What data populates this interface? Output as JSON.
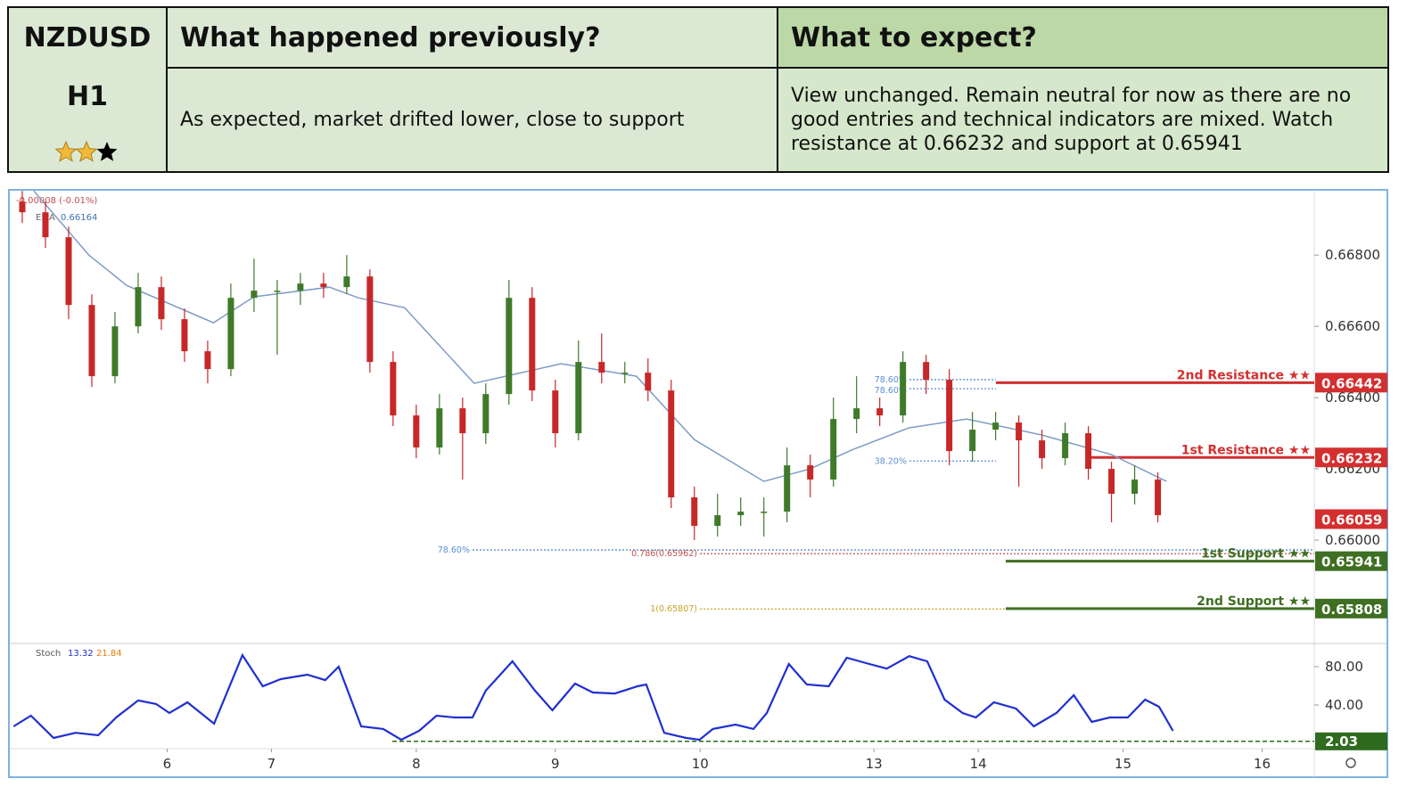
{
  "table": {
    "symbol": "NZDUSD",
    "timeframe": "H1",
    "rating": 2,
    "rating_max": 3,
    "previous_title": "What happened previously?",
    "expect_title": "What to expect?",
    "previous_text": "As expected, market drifted lower, close to support",
    "expect_text": "View unchanged. Remain neutral for now as there are no good entries and technical indicators are mixed. Watch resistance at 0.66232 and support at 0.65941"
  },
  "chart_data": [
    {
      "type": "candlestick",
      "change_text": "-0.00008 (-0.01%)",
      "xlim": [
        0,
        225
      ],
      "ylim": [
        0.6571,
        0.66983
      ],
      "xticks": [
        {
          "value": 27,
          "label": "6"
        },
        {
          "value": 45,
          "label": "7"
        },
        {
          "value": 70,
          "label": "8"
        },
        {
          "value": 94,
          "label": "9"
        },
        {
          "value": 119,
          "label": "10"
        },
        {
          "value": 149,
          "label": "13"
        },
        {
          "value": 167,
          "label": "14"
        },
        {
          "value": 192,
          "label": "15"
        },
        {
          "value": 216,
          "label": "16"
        }
      ],
      "yticks": [
        {
          "value": 0.668,
          "label": "0.66800"
        },
        {
          "value": 0.666,
          "label": "0.66600"
        },
        {
          "value": 0.664,
          "label": "0.66400"
        },
        {
          "value": 0.662,
          "label": "0.66200"
        },
        {
          "value": 0.66,
          "label": "0.66000"
        }
      ],
      "up_color": "#3f7a2a",
      "down_color": "#c62828",
      "x": [
        2,
        6,
        10,
        14,
        18,
        22,
        26,
        30,
        34,
        38,
        42,
        46,
        50,
        54,
        58,
        62,
        66,
        70,
        74,
        78,
        82,
        86,
        90,
        94,
        98,
        102,
        106,
        110,
        114,
        118,
        122,
        126,
        130,
        134,
        138,
        142,
        146,
        150,
        154,
        158,
        162,
        166,
        170,
        174,
        178,
        182,
        186,
        190,
        194,
        198
      ],
      "open": [
        0.6695,
        0.6692,
        0.6685,
        0.6666,
        0.6646,
        0.666,
        0.6671,
        0.6662,
        0.6653,
        0.6648,
        0.6668,
        0.667,
        0.667,
        0.6672,
        0.6671,
        0.6674,
        0.665,
        0.6635,
        0.6626,
        0.6637,
        0.663,
        0.6641,
        0.6668,
        0.6642,
        0.663,
        0.665,
        0.6647,
        0.6647,
        0.6642,
        0.6612,
        0.6604,
        0.6607,
        0.6608,
        0.6608,
        0.6621,
        0.6617,
        0.6634,
        0.6637,
        0.6635,
        0.665,
        0.6645,
        0.6625,
        0.6631,
        0.6633,
        0.6628,
        0.6623,
        0.663,
        0.662,
        0.6613,
        0.6617
      ],
      "high": [
        0.6698,
        0.6695,
        0.6688,
        0.6669,
        0.6664,
        0.6675,
        0.6674,
        0.6665,
        0.6656,
        0.6672,
        0.6679,
        0.6673,
        0.6675,
        0.6675,
        0.668,
        0.6676,
        0.6653,
        0.6638,
        0.6641,
        0.664,
        0.6644,
        0.6673,
        0.6671,
        0.6645,
        0.6656,
        0.6658,
        0.665,
        0.6651,
        0.6645,
        0.6615,
        0.6613,
        0.6612,
        0.6612,
        0.6626,
        0.6624,
        0.664,
        0.6646,
        0.664,
        0.6653,
        0.6652,
        0.6648,
        0.6636,
        0.6636,
        0.6635,
        0.6631,
        0.6633,
        0.6632,
        0.6622,
        0.6621,
        0.6619
      ],
      "low": [
        0.6689,
        0.6682,
        0.6662,
        0.6643,
        0.6644,
        0.6658,
        0.6659,
        0.665,
        0.6644,
        0.6646,
        0.6664,
        0.6652,
        0.6666,
        0.6668,
        0.6669,
        0.6647,
        0.6632,
        0.6623,
        0.6624,
        0.6617,
        0.6627,
        0.6638,
        0.6639,
        0.6626,
        0.6628,
        0.6644,
        0.6644,
        0.6639,
        0.6609,
        0.66,
        0.6601,
        0.6604,
        0.6601,
        0.6605,
        0.6612,
        0.6615,
        0.663,
        0.6632,
        0.6633,
        0.6641,
        0.6621,
        0.6622,
        0.6628,
        0.6615,
        0.662,
        0.6621,
        0.6617,
        0.6605,
        0.661,
        0.6605
      ],
      "close": [
        0.6692,
        0.6685,
        0.6666,
        0.6646,
        0.666,
        0.6671,
        0.6662,
        0.6653,
        0.6648,
        0.6668,
        0.667,
        0.667,
        0.6672,
        0.6671,
        0.6674,
        0.665,
        0.6635,
        0.6626,
        0.6637,
        0.663,
        0.6641,
        0.6668,
        0.6642,
        0.663,
        0.665,
        0.6647,
        0.6647,
        0.6642,
        0.6612,
        0.6604,
        0.6607,
        0.6608,
        0.6608,
        0.6621,
        0.6617,
        0.6634,
        0.6637,
        0.6635,
        0.665,
        0.6645,
        0.6625,
        0.6631,
        0.6633,
        0.6628,
        0.6623,
        0.663,
        0.662,
        0.6613,
        0.6617,
        0.6607
      ],
      "series": [
        {
          "name": "EMA",
          "color": "#7f9cc4",
          "last": 0.66164,
          "x": [
            4,
            13.5,
            20,
            35,
            42,
            55,
            60,
            68,
            80,
            95,
            108,
            118,
            130,
            138,
            145,
            155,
            165,
            178,
            190,
            199.5
          ],
          "values": [
            0.6698,
            0.668,
            0.66715,
            0.6661,
            0.66683,
            0.6671,
            0.6668,
            0.66652,
            0.6644,
            0.66495,
            0.6646,
            0.66282,
            0.66165,
            0.662,
            0.66252,
            0.66315,
            0.6634,
            0.66295,
            0.6624,
            0.66165
          ]
        }
      ],
      "levels": [
        {
          "label": "2nd Resistance ★★",
          "value": 0.66442,
          "color": "#d32f2f"
        },
        {
          "label": "1st Resistance ★★",
          "value": 0.66232,
          "color": "#d32f2f"
        },
        {
          "label": "1st Support ★★",
          "value": 0.65941,
          "color": "#3f6f22"
        },
        {
          "label": "2nd Support ★★",
          "value": 0.65808,
          "color": "#3f6f22"
        }
      ],
      "last_price": {
        "value": 0.66059,
        "color": "#d32f2f"
      },
      "fibs": [
        {
          "label": "78.60%",
          "value": 0.664505,
          "color": "#5b8fd6"
        },
        {
          "label": "78.60%",
          "value": 0.66425,
          "color": "#5b8fd6"
        },
        {
          "label": "38.20%",
          "value": 0.66222,
          "color": "#5b8fd6"
        },
        {
          "label": "78.60%",
          "value": 0.659725,
          "color": "#5b8fd6"
        },
        {
          "label": "0.786(0.65962)",
          "value": 0.65962,
          "color": "#c0504d"
        },
        {
          "label": "1(0.65807)",
          "value": 0.65807,
          "color": "#c9a227"
        }
      ]
    },
    {
      "type": "line",
      "name": "Stoch",
      "k": 13.32,
      "d": 21.84,
      "xlim": [
        0,
        225
      ],
      "ylim": [
        -5.6,
        104.2
      ],
      "yticks": [
        {
          "value": 80,
          "label": "80.00"
        },
        {
          "value": 40,
          "label": "40.00"
        }
      ],
      "level": {
        "value": 2.03,
        "color": "#2e6b1f"
      },
      "series": [
        {
          "name": "Stoch",
          "color": "#1f2fd0",
          "x": [
            0.5,
            3.5,
            7.4,
            11.2,
            15.1,
            18.2,
            22,
            25.1,
            27.4,
            30.5,
            35.1,
            40,
            43.5,
            46.6,
            51.2,
            54.3,
            56.6,
            60.5,
            64.3,
            67.4,
            70.5,
            73.5,
            76.6,
            79.7,
            82,
            86.6,
            90.5,
            93.5,
            97.4,
            100.5,
            104.3,
            108.2,
            109.7,
            112.8,
            116.6,
            118.9,
            121.2,
            125.1,
            128.2,
            130.5,
            134.3,
            137.4,
            141.2,
            144.3,
            148.2,
            151.2,
            155.1,
            158.2,
            161.2,
            164.3,
            166.6,
            169.7,
            173.5,
            176.6,
            180.5,
            183.5,
            186.6,
            189.7,
            192.8,
            195.8,
            198.2,
            200.6
          ],
          "values": [
            17.7,
            28.8,
            5.6,
            11,
            8.4,
            27,
            44.7,
            41,
            31.6,
            42.8,
            20.5,
            92,
            59.5,
            67,
            71.6,
            66,
            80,
            17.7,
            15,
            3.7,
            13,
            28.8,
            27,
            27,
            55,
            85.6,
            55,
            34.4,
            62.3,
            53,
            52,
            59.5,
            61.4,
            11,
            5.6,
            3.7,
            15,
            19.5,
            15,
            31.6,
            82.8,
            61.4,
            59.5,
            89.3,
            82.8,
            78,
            91,
            85.6,
            45.6,
            31.6,
            27,
            42.8,
            36.3,
            17.7,
            31.6,
            50.2,
            22.3,
            27,
            27,
            45.6,
            38.1,
            13
          ]
        }
      ]
    }
  ]
}
